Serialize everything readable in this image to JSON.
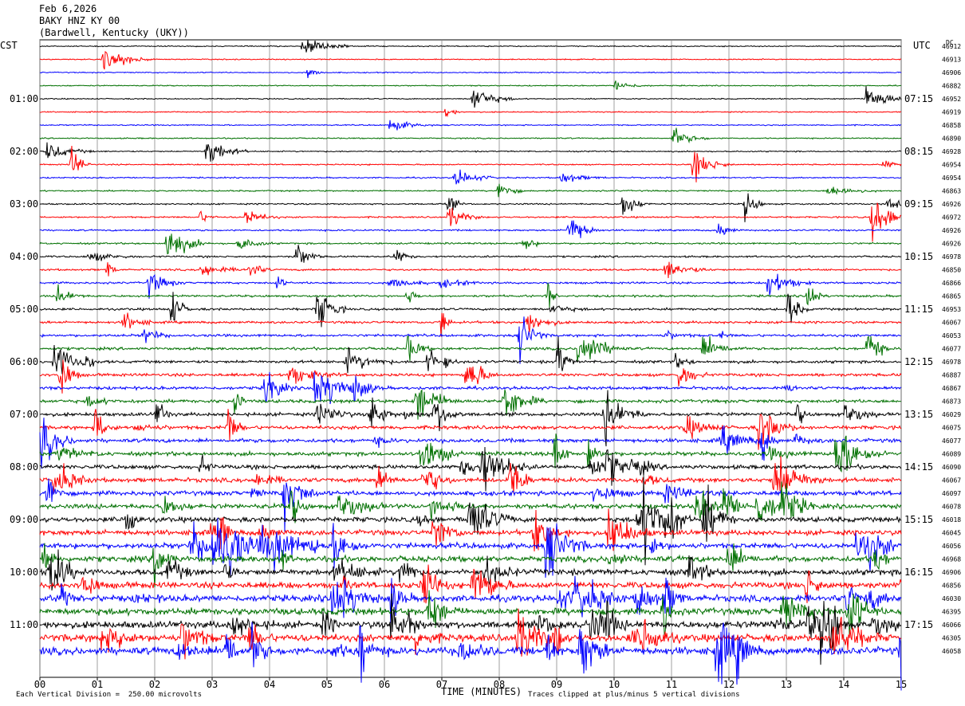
{
  "header": {
    "date": "Feb 6,2026",
    "station": "BAKY HNZ KY 00",
    "location": "(Bardwell, Kentucky (UKY))"
  },
  "left_tz": "CST",
  "right_tz": "UTC",
  "dc_label": "DC",
  "footer": {
    "scale_note": "Each Vertical Division =  250.00 microvolts",
    "clip_note": "Traces clipped at plus/minus 5 vertical divisions"
  },
  "chart_data": {
    "type": "line",
    "title": "",
    "xlabel": "TIME (MINUTES)",
    "x_ticks": [
      "00",
      "01",
      "02",
      "03",
      "04",
      "05",
      "06",
      "07",
      "08",
      "09",
      "10",
      "11",
      "12",
      "13",
      "14",
      "15"
    ],
    "xlim": [
      0,
      15
    ],
    "trace_colors": [
      "#000000",
      "#ff0000",
      "#0000ff",
      "#007000"
    ],
    "left_hour_labels": [
      "01:00",
      "02:00",
      "03:00",
      "04:00",
      "05:00",
      "06:00",
      "07:00",
      "08:00",
      "09:00",
      "10:00",
      "11:00"
    ],
    "right_hour_labels": [
      "07:15",
      "08:15",
      "09:15",
      "10:15",
      "11:15",
      "12:15",
      "13:15",
      "14:15",
      "15:15",
      "16:15",
      "17:15"
    ],
    "dc_offsets": [
      "46912",
      "46913",
      "46906",
      "46882",
      "46952",
      "46919",
      "46858",
      "46890",
      "46928",
      "46954",
      "46954",
      "46863",
      "46926",
      "46972",
      "46926",
      "46926",
      "46978",
      "46850",
      "46866",
      "46865",
      "46953",
      "46067",
      "46053",
      "46077",
      "46978",
      "46887",
      "46867",
      "46873",
      "46029",
      "46075",
      "46077",
      "46089",
      "46090",
      "46067",
      "46097",
      "46078",
      "46018",
      "46045",
      "46056",
      "46968",
      "46906",
      "46856",
      "46030",
      "46395",
      "46066",
      "46305",
      "46058"
    ],
    "grid": true
  }
}
